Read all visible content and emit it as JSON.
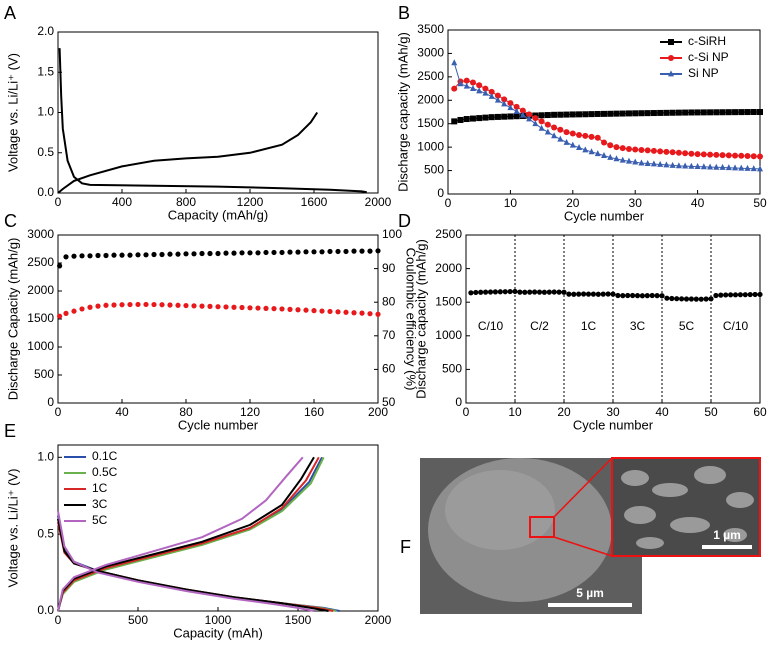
{
  "chart_data": [
    {
      "panel": "A",
      "type": "line",
      "xlabel": "Capacity (mAh/g)",
      "ylabel": "Voltage vs. Li/Li⁺ (V)",
      "xlim": [
        0,
        2000
      ],
      "xticks": [
        0,
        400,
        800,
        1200,
        1600,
        2000
      ],
      "ylim": [
        0,
        2
      ],
      "yticks": [
        {
          "value": 0,
          "label": "0.0"
        },
        {
          "value": 0.5,
          "label": "0.5"
        },
        {
          "value": 1,
          "label": "1.0"
        },
        {
          "value": 1.5,
          "label": "1.5"
        },
        {
          "value": 2,
          "label": "2.0"
        }
      ],
      "series": [
        {
          "color": "#000000",
          "x": [
            10,
            20,
            30,
            60,
            100,
            150,
            200,
            600,
            1000,
            1400,
            1700,
            1900,
            1930,
            null,
            0,
            30,
            100,
            200,
            400,
            600,
            800,
            1000,
            1200,
            1400,
            1500,
            1580,
            1620
          ],
          "values": [
            1.8,
            1.2,
            0.8,
            0.4,
            0.2,
            0.12,
            0.1,
            0.09,
            0.08,
            0.06,
            0.04,
            0.02,
            0.01,
            null,
            0,
            0.05,
            0.15,
            0.22,
            0.33,
            0.4,
            0.43,
            0.45,
            0.5,
            0.6,
            0.72,
            0.88,
            1.0
          ]
        }
      ]
    },
    {
      "panel": "B",
      "type": "line",
      "xlabel": "Cycle number",
      "ylabel": "Discharge capacity (mAh/g)",
      "xlim": [
        0,
        50
      ],
      "xticks": [
        0,
        10,
        20,
        30,
        40,
        50
      ],
      "ylim": [
        0,
        3500
      ],
      "yticks": [
        0,
        500,
        1000,
        1500,
        2000,
        2500,
        3000,
        3500
      ],
      "legend": "upper right",
      "x": [
        1,
        2,
        3,
        4,
        5,
        6,
        7,
        8,
        9,
        10,
        11,
        12,
        13,
        14,
        15,
        16,
        17,
        18,
        19,
        20,
        21,
        22,
        23,
        24,
        25,
        26,
        27,
        28,
        29,
        30,
        31,
        32,
        33,
        34,
        35,
        36,
        37,
        38,
        39,
        40,
        41,
        42,
        43,
        44,
        45,
        46,
        47,
        48,
        49,
        50
      ],
      "series": [
        {
          "name": "c-SiRH",
          "color": "#000000",
          "marker": "square",
          "values": [
            1550,
            1580,
            1600,
            1610,
            1620,
            1630,
            1640,
            1645,
            1650,
            1655,
            1660,
            1665,
            1670,
            1675,
            1680,
            1685,
            1690,
            1692,
            1695,
            1698,
            1700,
            1702,
            1705,
            1708,
            1710,
            1712,
            1715,
            1717,
            1720,
            1722,
            1724,
            1726,
            1728,
            1730,
            1732,
            1734,
            1736,
            1738,
            1740,
            1741,
            1742,
            1743,
            1744,
            1745,
            1746,
            1747,
            1748,
            1749,
            1750,
            1750
          ]
        },
        {
          "name": "c-Si NP",
          "color": "#e8191c",
          "marker": "circle",
          "values": [
            2250,
            2400,
            2420,
            2380,
            2320,
            2250,
            2180,
            2100,
            2020,
            1940,
            1860,
            1780,
            1700,
            1620,
            1550,
            1480,
            1420,
            1370,
            1320,
            1290,
            1260,
            1240,
            1220,
            1200,
            1100,
            1040,
            1000,
            980,
            960,
            950,
            940,
            930,
            920,
            910,
            900,
            890,
            880,
            870,
            860,
            850,
            845,
            840,
            835,
            830,
            825,
            820,
            815,
            810,
            805,
            800
          ]
        },
        {
          "name": "Si NP",
          "color": "#3a5fb0",
          "marker": "triangle",
          "values": [
            2800,
            2350,
            2300,
            2250,
            2200,
            2150,
            2080,
            2000,
            1920,
            1840,
            1760,
            1680,
            1600,
            1500,
            1400,
            1320,
            1240,
            1170,
            1100,
            1040,
            990,
            940,
            900,
            860,
            820,
            780,
            750,
            720,
            700,
            680,
            660,
            650,
            640,
            630,
            620,
            610,
            600,
            595,
            590,
            585,
            580,
            575,
            570,
            565,
            560,
            555,
            550,
            545,
            540,
            535
          ]
        }
      ]
    },
    {
      "panel": "C",
      "type": "scatter",
      "xlabel": "Cycle number",
      "ylabel": "Discharge Capacity (mAh/g)",
      "y2label": "Coulombic efficiency (%)",
      "xlim": [
        0,
        200
      ],
      "xticks": [
        0,
        40,
        80,
        120,
        160,
        200
      ],
      "ylim": [
        0,
        3000
      ],
      "yticks": [
        0,
        500,
        1000,
        1500,
        2000,
        2500,
        3000
      ],
      "y2lim": [
        50,
        100
      ],
      "y2ticks": [
        50,
        60,
        70,
        80,
        90,
        100
      ],
      "x": [
        1,
        5,
        10,
        15,
        20,
        25,
        30,
        35,
        40,
        45,
        50,
        55,
        60,
        65,
        70,
        75,
        80,
        85,
        90,
        95,
        100,
        105,
        110,
        115,
        120,
        125,
        130,
        135,
        140,
        145,
        150,
        155,
        160,
        165,
        170,
        175,
        180,
        185,
        190,
        195,
        200
      ],
      "series": [
        {
          "color": "#e8191c",
          "marker": "circle",
          "values": [
            1550,
            1600,
            1640,
            1680,
            1710,
            1730,
            1745,
            1750,
            1755,
            1758,
            1760,
            1760,
            1758,
            1755,
            1750,
            1745,
            1740,
            1735,
            1730,
            1725,
            1720,
            1715,
            1710,
            1705,
            1700,
            1695,
            1690,
            1685,
            1680,
            1672,
            1665,
            1658,
            1650,
            1642,
            1635,
            1628,
            1620,
            1612,
            1605,
            1595,
            1585
          ]
        },
        {
          "color": "#000000",
          "marker": "circle",
          "axis": "y2",
          "values": [
            90.8,
            93.5,
            93.7,
            93.8,
            93.8,
            93.9,
            93.9,
            94,
            94,
            94,
            94.1,
            94.1,
            94.2,
            94.2,
            94.3,
            94.3,
            94.4,
            94.4,
            94.5,
            94.5,
            94.5,
            94.6,
            94.6,
            94.7,
            94.7,
            94.7,
            94.8,
            94.8,
            94.8,
            94.9,
            94.9,
            95,
            95,
            95,
            95.1,
            95.1,
            95.1,
            95.2,
            95.2,
            95.2,
            95.3
          ]
        }
      ]
    },
    {
      "panel": "D",
      "type": "scatter",
      "xlabel": "Cycle number",
      "ylabel": "Discharge capacity (mAh/g)",
      "xlim": [
        0,
        60
      ],
      "xticks": [
        0,
        10,
        20,
        30,
        40,
        50,
        60
      ],
      "ylim": [
        0,
        2500
      ],
      "yticks": [
        0,
        500,
        1000,
        1500,
        2000,
        2500
      ],
      "vlines": [
        10,
        20,
        30,
        40,
        50
      ],
      "rate_labels": [
        "C/10",
        "C/2",
        "1C",
        "3C",
        "5C",
        "C/10"
      ],
      "x": [
        1,
        2,
        3,
        4,
        5,
        6,
        7,
        8,
        9,
        10,
        11,
        12,
        13,
        14,
        15,
        16,
        17,
        18,
        19,
        20,
        21,
        22,
        23,
        24,
        25,
        26,
        27,
        28,
        29,
        30,
        31,
        32,
        33,
        34,
        35,
        36,
        37,
        38,
        39,
        40,
        41,
        42,
        43,
        44,
        45,
        46,
        47,
        48,
        49,
        50,
        51,
        52,
        53,
        54,
        55,
        56,
        57,
        58,
        59,
        60
      ],
      "series": [
        {
          "color": "#000000",
          "marker": "circle",
          "values": [
            1640,
            1645,
            1648,
            1650,
            1652,
            1654,
            1655,
            1656,
            1658,
            1660,
            1650,
            1648,
            1650,
            1652,
            1650,
            1648,
            1650,
            1652,
            1650,
            1648,
            1620,
            1618,
            1620,
            1622,
            1620,
            1620,
            1618,
            1620,
            1622,
            1620,
            1600,
            1598,
            1600,
            1600,
            1598,
            1596,
            1598,
            1600,
            1598,
            1596,
            1560,
            1555,
            1552,
            1550,
            1548,
            1548,
            1546,
            1545,
            1548,
            1550,
            1600,
            1605,
            1608,
            1610,
            1610,
            1612,
            1612,
            1614,
            1615,
            1615
          ]
        }
      ]
    },
    {
      "panel": "E",
      "type": "line",
      "xlabel": "Capacity (mAh)",
      "ylabel": "Voltage vs. Li/Li⁺ (V)",
      "xlim": [
        0,
        2000
      ],
      "xticks": [
        0,
        500,
        1000,
        1500,
        2000
      ],
      "ylim": [
        0,
        1.08
      ],
      "yticks": [
        {
          "value": 0,
          "label": "0.0"
        },
        {
          "value": 0.5,
          "label": "0.5"
        },
        {
          "value": 1,
          "label": "1.0"
        }
      ],
      "legend": "upper left",
      "series": [
        {
          "name": "0.1C",
          "color": "#2b4fa8",
          "x": [
            0,
            40,
            100,
            250,
            500,
            800,
            1100,
            1400,
            1660,
            1760,
            null,
            0,
            30,
            100,
            300,
            600,
            900,
            1200,
            1400,
            1570,
            1650
          ],
          "values": [
            0.62,
            0.4,
            0.32,
            0.26,
            0.2,
            0.14,
            0.09,
            0.05,
            0.02,
            0,
            null,
            0,
            0.12,
            0.2,
            0.28,
            0.36,
            0.44,
            0.54,
            0.66,
            0.84,
            1.0
          ]
        },
        {
          "name": "0.5C",
          "color": "#6ab04c",
          "x": [
            0,
            40,
            100,
            250,
            500,
            800,
            1100,
            1400,
            1640,
            1740,
            null,
            0,
            30,
            100,
            300,
            600,
            900,
            1200,
            1400,
            1580,
            1660
          ],
          "values": [
            0.6,
            0.39,
            0.31,
            0.26,
            0.2,
            0.14,
            0.09,
            0.05,
            0.02,
            0,
            null,
            0,
            0.11,
            0.19,
            0.27,
            0.35,
            0.43,
            0.53,
            0.65,
            0.83,
            1.0
          ]
        },
        {
          "name": "1C",
          "color": "#d62728",
          "x": [
            0,
            40,
            100,
            250,
            500,
            800,
            1100,
            1400,
            1620,
            1720,
            null,
            0,
            30,
            100,
            300,
            600,
            900,
            1200,
            1400,
            1550,
            1630
          ],
          "values": [
            0.58,
            0.38,
            0.31,
            0.26,
            0.2,
            0.14,
            0.09,
            0.05,
            0.02,
            0,
            null,
            0,
            0.12,
            0.2,
            0.28,
            0.36,
            0.44,
            0.54,
            0.67,
            0.85,
            1.0
          ]
        },
        {
          "name": "3C",
          "color": "#000000",
          "x": [
            0,
            40,
            100,
            250,
            500,
            800,
            1100,
            1400,
            1580,
            1690,
            null,
            0,
            30,
            100,
            300,
            600,
            900,
            1200,
            1400,
            1520,
            1600
          ],
          "values": [
            0.6,
            0.39,
            0.31,
            0.26,
            0.2,
            0.14,
            0.09,
            0.05,
            0.02,
            0,
            null,
            0,
            0.13,
            0.21,
            0.29,
            0.37,
            0.45,
            0.56,
            0.69,
            0.86,
            1.0
          ]
        },
        {
          "name": "5C",
          "color": "#b266c0",
          "x": [
            0,
            40,
            100,
            250,
            500,
            800,
            1100,
            1350,
            1500,
            1600,
            null,
            0,
            30,
            100,
            300,
            600,
            900,
            1150,
            1300,
            1430,
            1530
          ],
          "values": [
            0.65,
            0.42,
            0.32,
            0.25,
            0.19,
            0.13,
            0.08,
            0.045,
            0.02,
            0,
            null,
            0,
            0.14,
            0.22,
            0.3,
            0.39,
            0.48,
            0.6,
            0.72,
            0.88,
            1.0
          ]
        }
      ]
    }
  ],
  "panel_F": {
    "panel": "F",
    "scale_bar_main": "5 µm",
    "scale_bar_inset": "1 µm"
  }
}
